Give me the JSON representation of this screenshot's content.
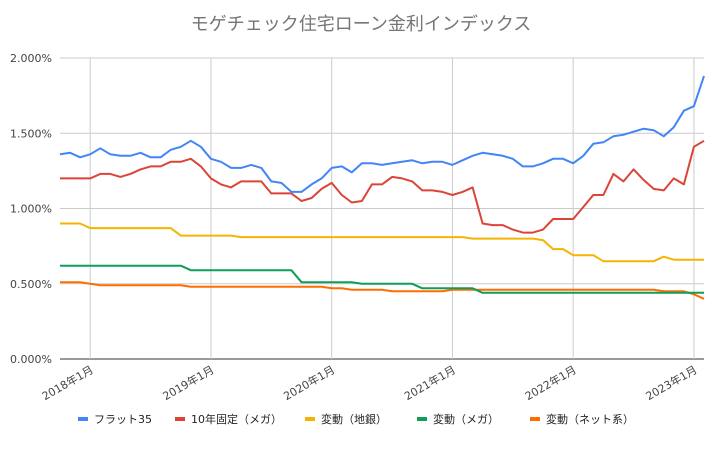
{
  "chart_data": {
    "type": "line",
    "title": "モゲチェック住宅ローン金利インデックス",
    "xlabel": "",
    "ylabel": "",
    "x_start": "2017-10",
    "x_end": "2023-02",
    "x_ticks": [
      "2018年1月",
      "2019年1月",
      "2020年1月",
      "2021年1月",
      "2022年1月",
      "2023年1月"
    ],
    "y_ticks": [
      "0.000%",
      "0.500%",
      "1.000%",
      "1.500%",
      "2.000%"
    ],
    "ylim": [
      0,
      2.0
    ],
    "grid": true,
    "legend_position": "bottom",
    "series": [
      {
        "name": "フラット35",
        "color": "#4285F4",
        "values": [
          1.36,
          1.37,
          1.34,
          1.36,
          1.4,
          1.36,
          1.35,
          1.35,
          1.37,
          1.34,
          1.34,
          1.39,
          1.41,
          1.45,
          1.41,
          1.33,
          1.31,
          1.27,
          1.27,
          1.29,
          1.27,
          1.18,
          1.17,
          1.11,
          1.11,
          1.16,
          1.2,
          1.27,
          1.28,
          1.24,
          1.3,
          1.3,
          1.29,
          1.3,
          1.31,
          1.32,
          1.3,
          1.31,
          1.31,
          1.29,
          1.32,
          1.35,
          1.37,
          1.36,
          1.35,
          1.33,
          1.28,
          1.28,
          1.3,
          1.33,
          1.33,
          1.3,
          1.35,
          1.43,
          1.44,
          1.48,
          1.49,
          1.51,
          1.53,
          1.52,
          1.48,
          1.54,
          1.65,
          1.68,
          1.88
        ]
      },
      {
        "name": "10年固定（メガ）",
        "color": "#DB4437",
        "values": [
          1.2,
          1.2,
          1.2,
          1.2,
          1.23,
          1.23,
          1.21,
          1.23,
          1.26,
          1.28,
          1.28,
          1.31,
          1.31,
          1.33,
          1.28,
          1.2,
          1.16,
          1.14,
          1.18,
          1.18,
          1.18,
          1.1,
          1.1,
          1.1,
          1.05,
          1.07,
          1.13,
          1.17,
          1.09,
          1.04,
          1.05,
          1.16,
          1.16,
          1.21,
          1.2,
          1.18,
          1.12,
          1.12,
          1.11,
          1.09,
          1.11,
          1.14,
          0.9,
          0.89,
          0.89,
          0.86,
          0.84,
          0.84,
          0.86,
          0.93,
          0.93,
          0.93,
          1.01,
          1.09,
          1.09,
          1.23,
          1.18,
          1.26,
          1.19,
          1.13,
          1.12,
          1.2,
          1.16,
          1.41,
          1.45
        ]
      },
      {
        "name": "変動（地銀）",
        "color": "#F4B400",
        "values": [
          0.9,
          0.9,
          0.9,
          0.87,
          0.87,
          0.87,
          0.87,
          0.87,
          0.87,
          0.87,
          0.87,
          0.87,
          0.82,
          0.82,
          0.82,
          0.82,
          0.82,
          0.82,
          0.81,
          0.81,
          0.81,
          0.81,
          0.81,
          0.81,
          0.81,
          0.81,
          0.81,
          0.81,
          0.81,
          0.81,
          0.81,
          0.81,
          0.81,
          0.81,
          0.81,
          0.81,
          0.81,
          0.81,
          0.81,
          0.81,
          0.81,
          0.8,
          0.8,
          0.8,
          0.8,
          0.8,
          0.8,
          0.8,
          0.79,
          0.73,
          0.73,
          0.69,
          0.69,
          0.69,
          0.65,
          0.65,
          0.65,
          0.65,
          0.65,
          0.65,
          0.68,
          0.66,
          0.66,
          0.66,
          0.66
        ]
      },
      {
        "name": "変動（メガ）",
        "color": "#0F9D58",
        "values": [
          0.62,
          0.62,
          0.62,
          0.62,
          0.62,
          0.62,
          0.62,
          0.62,
          0.62,
          0.62,
          0.62,
          0.62,
          0.62,
          0.59,
          0.59,
          0.59,
          0.59,
          0.59,
          0.59,
          0.59,
          0.59,
          0.59,
          0.59,
          0.59,
          0.51,
          0.51,
          0.51,
          0.51,
          0.51,
          0.51,
          0.5,
          0.5,
          0.5,
          0.5,
          0.5,
          0.5,
          0.47,
          0.47,
          0.47,
          0.47,
          0.47,
          0.47,
          0.44,
          0.44,
          0.44,
          0.44,
          0.44,
          0.44,
          0.44,
          0.44,
          0.44,
          0.44,
          0.44,
          0.44,
          0.44,
          0.44,
          0.44,
          0.44,
          0.44,
          0.44,
          0.44,
          0.44,
          0.44,
          0.44,
          0.44
        ]
      },
      {
        "name": "変動（ネット系）",
        "color": "#FF6D01",
        "values": [
          0.51,
          0.51,
          0.51,
          0.5,
          0.49,
          0.49,
          0.49,
          0.49,
          0.49,
          0.49,
          0.49,
          0.49,
          0.49,
          0.48,
          0.48,
          0.48,
          0.48,
          0.48,
          0.48,
          0.48,
          0.48,
          0.48,
          0.48,
          0.48,
          0.48,
          0.48,
          0.48,
          0.47,
          0.47,
          0.46,
          0.46,
          0.46,
          0.46,
          0.45,
          0.45,
          0.45,
          0.45,
          0.45,
          0.45,
          0.46,
          0.46,
          0.46,
          0.46,
          0.46,
          0.46,
          0.46,
          0.46,
          0.46,
          0.46,
          0.46,
          0.46,
          0.46,
          0.46,
          0.46,
          0.46,
          0.46,
          0.46,
          0.46,
          0.46,
          0.46,
          0.45,
          0.45,
          0.45,
          0.43,
          0.4
        ]
      }
    ]
  }
}
